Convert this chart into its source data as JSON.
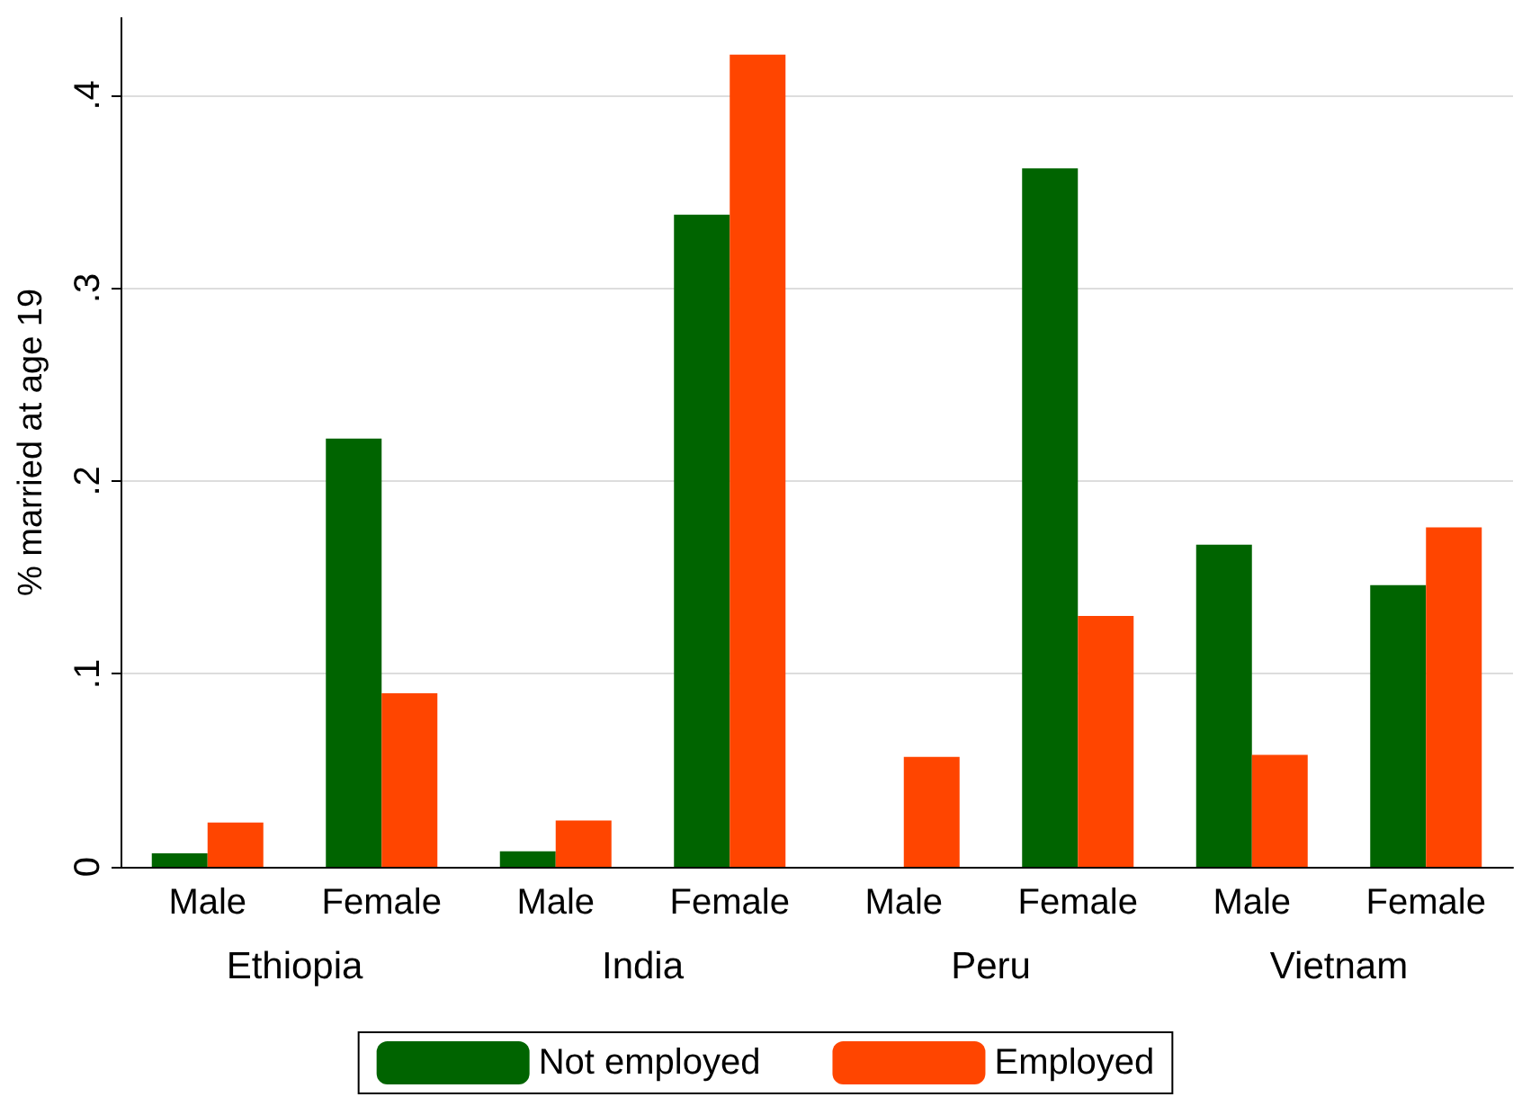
{
  "chart_data": {
    "type": "bar",
    "ylabel": "% married at age 19",
    "categories": [
      "Male",
      "Female",
      "Male",
      "Female",
      "Male",
      "Female",
      "Male",
      "Female"
    ],
    "series": [
      {
        "name": "Not employed",
        "color": "#006400",
        "values": [
          0.007,
          0.222,
          0.008,
          0.338,
          0,
          0.362,
          0.167,
          0.146
        ]
      },
      {
        "name": "Employed",
        "color": "#ff4500",
        "values": [
          0.023,
          0.09,
          0.024,
          0.421,
          0.057,
          0.13,
          0.058,
          0.176
        ]
      }
    ],
    "annotations": [
      "Ethiopia",
      "India",
      "Peru",
      "Vietnam"
    ],
    "ylim": [
      0,
      0.44
    ],
    "yticks": [
      {
        "value": 0,
        "label": "0"
      },
      {
        "value": 0.1,
        "label": ".1"
      },
      {
        "value": 0.2,
        "label": ".2"
      },
      {
        "value": 0.3,
        "label": ".3"
      },
      {
        "value": 0.4,
        "label": ".4"
      }
    ],
    "grid": "y",
    "legend": "bottom"
  }
}
